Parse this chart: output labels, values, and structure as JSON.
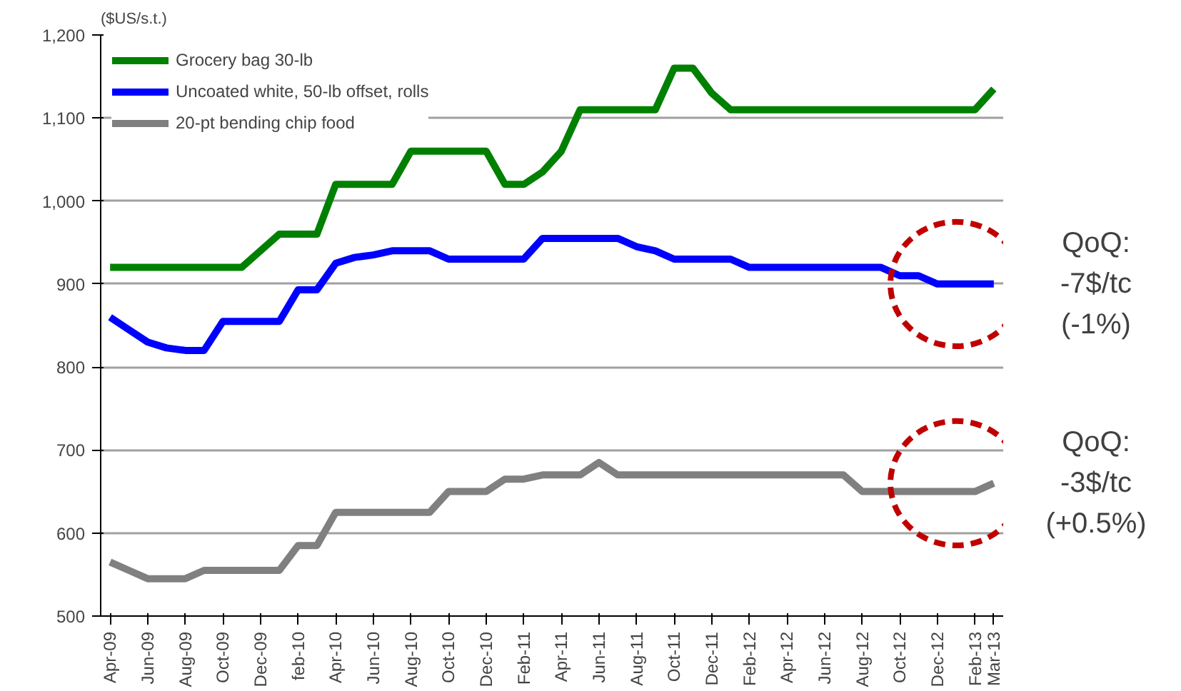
{
  "chart_data": {
    "type": "line",
    "ylabel": "($US/s.t.)",
    "categories": [
      "Apr-09",
      null,
      "Jun-09",
      null,
      "Aug-09",
      null,
      "Oct-09",
      null,
      "Dec-09",
      null,
      "feb-10",
      null,
      "Apr-10",
      null,
      "Jun-10",
      null,
      "Aug-10",
      null,
      "Oct-10",
      null,
      "Dec-10",
      null,
      "Feb-11",
      null,
      "Apr-11",
      null,
      "Jun-11",
      null,
      "Aug-11",
      null,
      "Oct-11",
      null,
      "Dec-11",
      null,
      "Feb-12",
      null,
      "Apr-12",
      null,
      "Jun-12",
      null,
      "Aug-12",
      null,
      "Oct-12",
      null,
      "Dec-12",
      null,
      "Feb-13",
      "Mar-13"
    ],
    "series": [
      {
        "name": "Grocery bag 30-lb",
        "color": "#008000",
        "values": [
          920,
          920,
          920,
          920,
          920,
          920,
          920,
          920,
          940,
          960,
          960,
          960,
          1020,
          1020,
          1020,
          1020,
          1060,
          1060,
          1060,
          1060,
          1060,
          1020,
          1020,
          1035,
          1060,
          1110,
          1110,
          1110,
          1110,
          1110,
          1160,
          1160,
          1130,
          1110,
          1110,
          1110,
          1110,
          1110,
          1110,
          1110,
          1110,
          1110,
          1110,
          1110,
          1110,
          1110,
          1110,
          1135
        ]
      },
      {
        "name": "Uncoated white, 50-lb offset, rolls",
        "color": "#0000ff",
        "values": [
          860,
          845,
          830,
          823,
          820,
          820,
          855,
          855,
          855,
          855,
          893,
          893,
          925,
          932,
          935,
          940,
          940,
          940,
          930,
          930,
          930,
          930,
          930,
          955,
          955,
          955,
          955,
          955,
          945,
          940,
          930,
          930,
          930,
          930,
          920,
          920,
          920,
          920,
          920,
          920,
          920,
          920,
          910,
          910,
          900,
          900,
          900,
          900
        ]
      },
      {
        "name": "20-pt bending chip food",
        "color": "#808080",
        "values": [
          565,
          555,
          545,
          545,
          545,
          555,
          555,
          555,
          555,
          555,
          585,
          585,
          625,
          625,
          625,
          625,
          625,
          625,
          650,
          650,
          650,
          665,
          665,
          670,
          670,
          670,
          685,
          670,
          670,
          670,
          670,
          670,
          670,
          670,
          670,
          670,
          670,
          670,
          670,
          670,
          650,
          650,
          650,
          650,
          650,
          650,
          650,
          660
        ]
      }
    ],
    "ylim": [
      500,
      1200
    ],
    "yticks": [
      {
        "value": 500,
        "label": "500"
      },
      {
        "value": 600,
        "label": "600"
      },
      {
        "value": 700,
        "label": "700"
      },
      {
        "value": 800,
        "label": "800"
      },
      {
        "value": 900,
        "label": "900"
      },
      {
        "value": 1000,
        "label": "1,000"
      },
      {
        "value": 1100,
        "label": "1,100"
      },
      {
        "value": 1200,
        "label": "1,200"
      }
    ],
    "grid": "y",
    "legend": "top left",
    "marker": "none",
    "line_style": "solid",
    "annotations": [
      "QoQ:\n-7$/tc\n(-1%)",
      "QoQ:\n-3$/tc\n(+0.5%)"
    ]
  }
}
